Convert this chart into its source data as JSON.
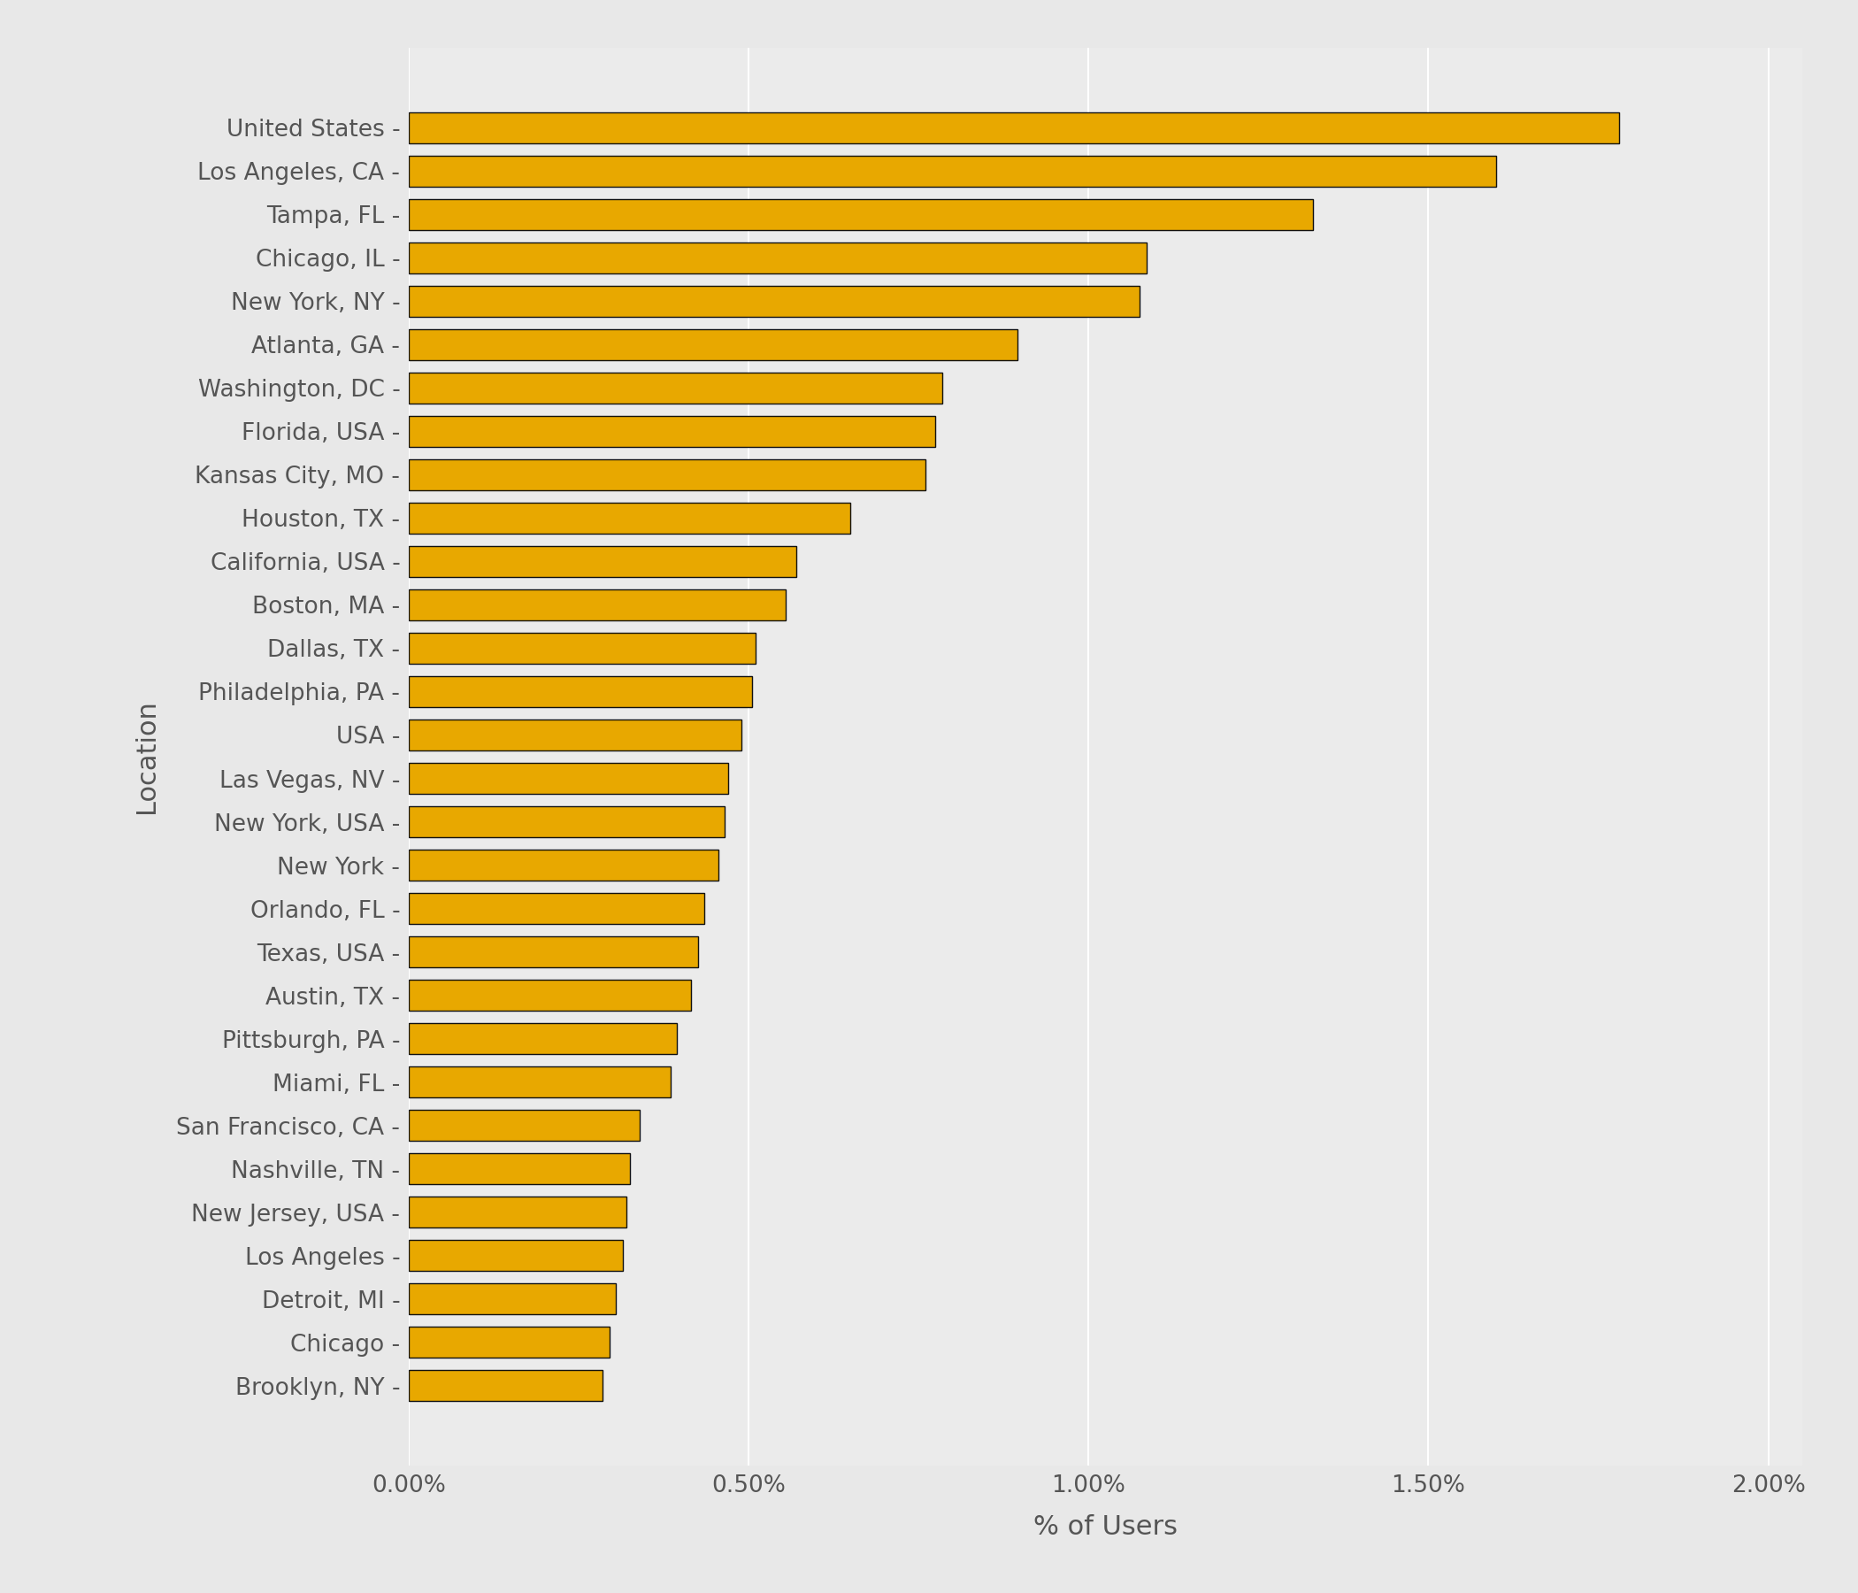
{
  "locations": [
    "Brooklyn, NY",
    "Chicago",
    "Detroit, MI",
    "Los Angeles",
    "New Jersey, USA",
    "Nashville, TN",
    "San Francisco, CA",
    "Miami, FL",
    "Pittsburgh, PA",
    "Austin, TX",
    "Texas, USA",
    "Orlando, FL",
    "New York",
    "New York, USA",
    "Las Vegas, NV",
    "USA",
    "Philadelphia, PA",
    "Dallas, TX",
    "Boston, MA",
    "California, USA",
    "Houston, TX",
    "Kansas City, MO",
    "Florida, USA",
    "Washington, DC",
    "Atlanta, GA",
    "New York, NY",
    "Chicago, IL",
    "Tampa, FL",
    "Los Angeles, CA",
    "United States"
  ],
  "values": [
    0.00285,
    0.00295,
    0.00305,
    0.00315,
    0.0032,
    0.00325,
    0.0034,
    0.00385,
    0.00395,
    0.00415,
    0.00425,
    0.00435,
    0.00455,
    0.00465,
    0.0047,
    0.0049,
    0.00505,
    0.0051,
    0.00555,
    0.0057,
    0.0065,
    0.0076,
    0.00775,
    0.00785,
    0.00895,
    0.01075,
    0.01085,
    0.0133,
    0.016,
    0.0178
  ],
  "bar_color": "#E8A800",
  "bar_edgecolor": "#111111",
  "background_color": "#E8E8E8",
  "panel_color": "#EBEBEB",
  "grid_color": "#FFFFFF",
  "xlabel": "% of Users",
  "ylabel": "Location",
  "xlim": [
    0,
    0.0205
  ],
  "xticks": [
    0.0,
    0.005,
    0.01,
    0.015,
    0.02
  ],
  "xtick_labels": [
    "0.00%",
    "0.50%",
    "1.00%",
    "1.50%",
    "2.00%"
  ],
  "tick_color": "#555555",
  "label_color": "#555555",
  "font_family": "Georgia"
}
